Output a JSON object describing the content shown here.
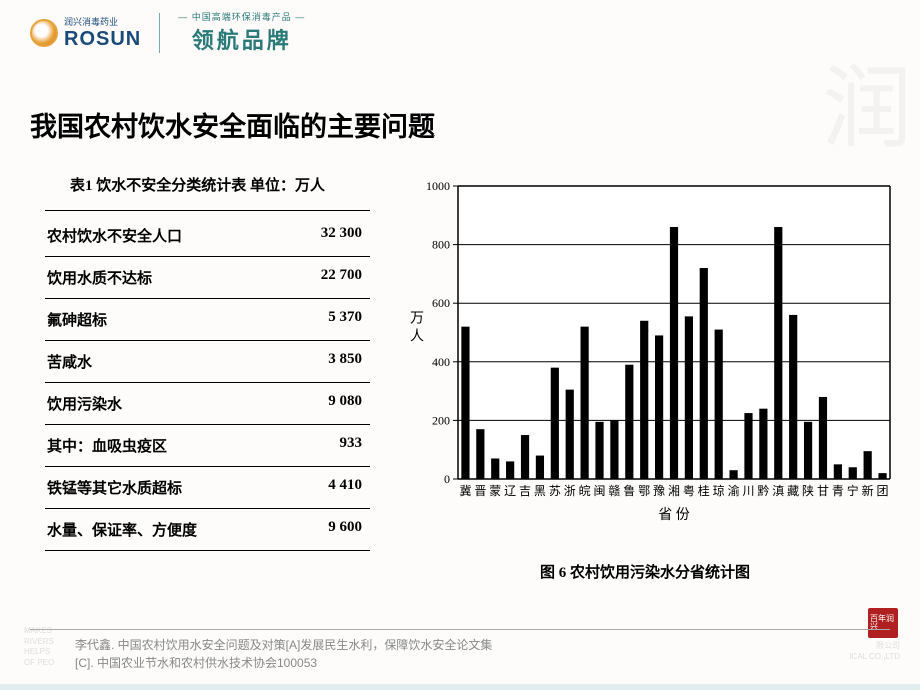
{
  "header": {
    "logo_sub": "润兴消毒药业",
    "logo_main": "ROSUN",
    "brand_top": "— 中国高端环保消毒产品 —",
    "brand_main": "领航品牌"
  },
  "watermark": "润",
  "title": "我国农村饮水安全面临的主要问题",
  "table": {
    "caption": "表1  饮水不安全分类统计表  单位：万人",
    "rows": [
      {
        "label": "农村饮水不安全人口",
        "value": "32 300"
      },
      {
        "label": "饮用水质不达标",
        "value": "22 700"
      },
      {
        "label": "氟砷超标",
        "value": "5 370"
      },
      {
        "label": "苦咸水",
        "value": "3 850"
      },
      {
        "label": "饮用污染水",
        "value": "9 080"
      },
      {
        "label": "其中：血吸虫疫区",
        "value": "933"
      },
      {
        "label": "铁锰等其它水质超标",
        "value": "4 410"
      },
      {
        "label": "水量、保证率、方便度",
        "value": "9 600"
      }
    ]
  },
  "chart": {
    "type": "bar",
    "caption": "图 6  农村饮用污染水分省统计图",
    "y_label": "万人",
    "x_label": "省 份",
    "ylim": [
      0,
      1000
    ],
    "ytick_step": 200,
    "yticks": [
      0,
      200,
      400,
      600,
      800,
      1000
    ],
    "categories": [
      "冀",
      "晋",
      "蒙",
      "辽",
      "吉",
      "黑",
      "苏",
      "浙",
      "皖",
      "闽",
      "赣",
      "鲁",
      "鄂",
      "豫",
      "湘",
      "粤",
      "桂",
      "琼",
      "渝",
      "川",
      "黔",
      "滇",
      "藏",
      "陕",
      "甘",
      "青",
      "宁",
      "新",
      "团"
    ],
    "values": [
      520,
      170,
      70,
      60,
      150,
      80,
      380,
      305,
      520,
      195,
      200,
      390,
      540,
      490,
      860,
      555,
      720,
      510,
      30,
      225,
      240,
      860,
      560,
      195,
      280,
      50,
      40,
      95,
      20
    ],
    "bar_color": "#000000",
    "axis_color": "#000000",
    "grid_color": "#000000",
    "background_color": "#ffffff",
    "label_fontsize": 12,
    "tick_fontsize": 12,
    "bar_width_ratio": 0.55
  },
  "footer": {
    "line1": "李代鑫. 中国农村饮用水安全问题及对策[A]发展民生水利，保障饮水安全论文集",
    "line2": "[C]. 中国农业节水和农村供水技术协会100053",
    "faint_left": "MAKES\nRIVERS\nHELPS\nOF PEO",
    "faint_right": "限公司\nICAL CO.,LTD",
    "seal": "百年润兴"
  }
}
